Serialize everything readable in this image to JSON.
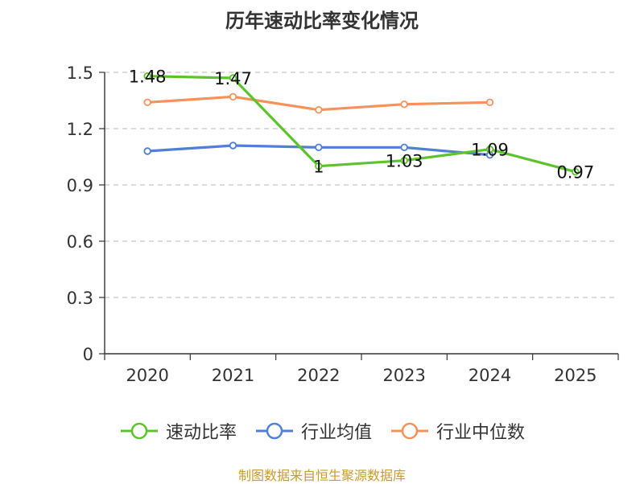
{
  "chart_data": {
    "type": "line",
    "title": "历年速动比率变化情况",
    "categories": [
      "2020",
      "2021",
      "2022",
      "2023",
      "2024",
      "2025"
    ],
    "ylim": [
      0,
      1.5
    ],
    "yticks": [
      0,
      0.3,
      0.6,
      0.9,
      1.2,
      1.5
    ],
    "ytick_labels": [
      "0",
      "0.3",
      "0.6",
      "0.9",
      "1.2",
      "1.5"
    ],
    "grid": true,
    "legend_position": "bottom",
    "series": [
      {
        "name": "速动比率",
        "color": "#5cc42b",
        "values": [
          1.48,
          1.47,
          1.0,
          1.03,
          1.09,
          0.97
        ],
        "data_labels": [
          "1.48",
          "1.47",
          "1",
          "1.03",
          "1.09",
          "0.97"
        ]
      },
      {
        "name": "行业均值",
        "color": "#4f7fd6",
        "values": [
          1.08,
          1.11,
          1.1,
          1.1,
          1.06,
          null
        ],
        "data_labels": []
      },
      {
        "name": "行业中位数",
        "color": "#f5925a",
        "values": [
          1.34,
          1.37,
          1.3,
          1.33,
          1.34,
          null
        ],
        "data_labels": []
      }
    ]
  },
  "source_note": "制图数据来自恒生聚源数据库"
}
